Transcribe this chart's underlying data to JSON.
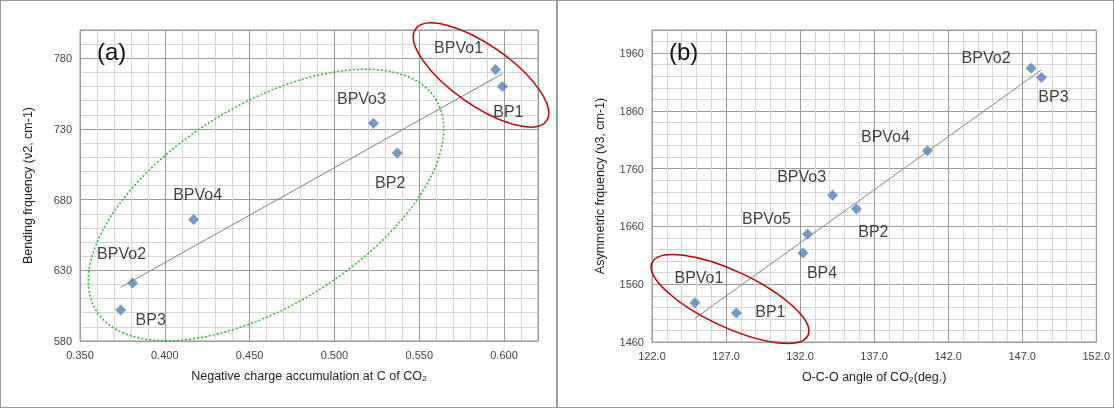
{
  "chart_data": [
    {
      "type": "scatter",
      "title": "(a)",
      "xlabel": "Negative charge accumulation at C of CO₂",
      "ylabel": "Bending frquency (ν2, cm-1)",
      "xlim": [
        0.35,
        0.62
      ],
      "ylim": [
        580,
        800
      ],
      "xticks": [
        {
          "value": 0.35,
          "label": "0.350"
        },
        {
          "value": 0.4,
          "label": "0.400"
        },
        {
          "value": 0.45,
          "label": "0.450"
        },
        {
          "value": 0.5,
          "label": "0.500"
        },
        {
          "value": 0.55,
          "label": "0.550"
        },
        {
          "value": 0.6,
          "label": "0.600"
        }
      ],
      "yticks": [
        580,
        630,
        680,
        730,
        780
      ],
      "grid": true,
      "series": [
        {
          "marker": "diamond",
          "color": "#4f81bd",
          "x": [
            0.595,
            0.599,
            0.523,
            0.537,
            0.417,
            0.381,
            0.374
          ],
          "values": [
            772,
            760,
            734,
            713,
            666,
            621,
            602
          ]
        },
        {
          "type": "line",
          "marker": "none",
          "color": "#808080",
          "x": [
            0.374,
            0.599
          ],
          "values": [
            618,
            769
          ]
        }
      ],
      "annotations": [
        {
          "text": "BPVo1",
          "x": 0.595,
          "y": 772
        },
        {
          "text": "BP1",
          "x": 0.599,
          "y": 760
        },
        {
          "text": "BPVo3",
          "x": 0.523,
          "y": 734
        },
        {
          "text": "BP2",
          "x": 0.537,
          "y": 713
        },
        {
          "text": "BPVo4",
          "x": 0.417,
          "y": 666
        },
        {
          "text": "BPVo2",
          "x": 0.381,
          "y": 621
        },
        {
          "text": "BP3",
          "x": 0.374,
          "y": 602
        }
      ]
    },
    {
      "type": "scatter",
      "title": "(b)",
      "xlabel": "O-C-O angle of CO₂(deg.)",
      "ylabel": "Asymmetric frquency (ν3, cm-1)",
      "xlim": [
        122,
        152
      ],
      "ylim": [
        1460,
        2000
      ],
      "xticks": [
        {
          "value": 122,
          "label": "122.0"
        },
        {
          "value": 127,
          "label": "127.0"
        },
        {
          "value": 132,
          "label": "132.0"
        },
        {
          "value": 137,
          "label": "137.0"
        },
        {
          "value": 142,
          "label": "142.0"
        },
        {
          "value": 147,
          "label": "147.0"
        },
        {
          "value": 152,
          "label": "152.0"
        }
      ],
      "yticks": [
        1460,
        1560,
        1660,
        1760,
        1860,
        1960
      ],
      "grid": true,
      "series": [
        {
          "marker": "diamond",
          "color": "#4f81bd",
          "x": [
            147.6,
            148.3,
            140.6,
            134.2,
            135.8,
            132.5,
            132.2,
            124.9,
            127.7
          ],
          "values": [
            1934,
            1918,
            1791,
            1714,
            1690,
            1647,
            1614,
            1528,
            1510
          ]
        },
        {
          "type": "line",
          "marker": "none",
          "color": "#808080",
          "x": [
            124.9,
            148.3
          ],
          "values": [
            1501,
            1931
          ]
        }
      ],
      "annotations": [
        {
          "text": "BPVo2",
          "x": 147.6,
          "y": 1934
        },
        {
          "text": "BP3",
          "x": 148.3,
          "y": 1918
        },
        {
          "text": "BPVo4",
          "x": 140.6,
          "y": 1791
        },
        {
          "text": "BPVo3",
          "x": 134.2,
          "y": 1714
        },
        {
          "text": "BP2",
          "x": 135.8,
          "y": 1690
        },
        {
          "text": "BPVo5",
          "x": 132.5,
          "y": 1647
        },
        {
          "text": "BP4",
          "x": 132.2,
          "y": 1614
        },
        {
          "text": "BPVo1",
          "x": 124.9,
          "y": 1528
        },
        {
          "text": "BP1",
          "x": 127.7,
          "y": 1510
        }
      ]
    }
  ]
}
